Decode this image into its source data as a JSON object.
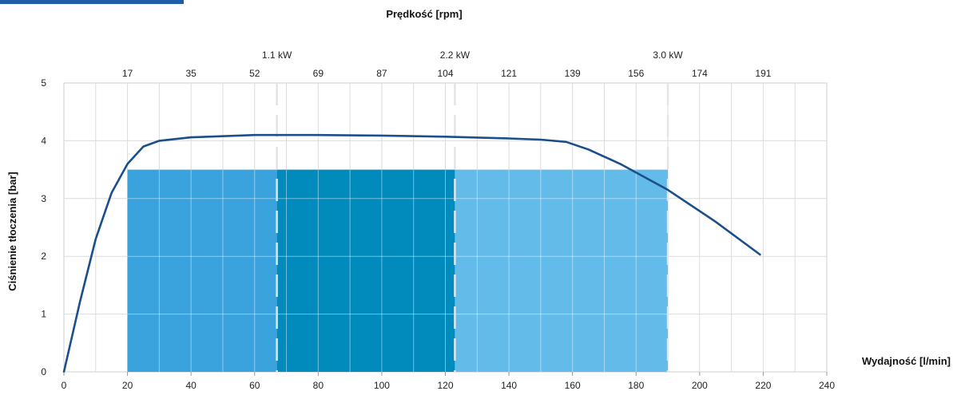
{
  "chart_data": {
    "type": "area",
    "xlabel": "Wydajność [l/min]",
    "ylabel": "Ciśnienie tłoczenia [bar]",
    "top_axis_label": "Prędkość [rpm]",
    "xlim": [
      0,
      240
    ],
    "ylim": [
      0,
      5
    ],
    "x_ticks": [
      0,
      20,
      40,
      60,
      80,
      100,
      120,
      140,
      160,
      180,
      200,
      220,
      240
    ],
    "y_ticks": [
      0,
      1,
      2,
      3,
      4,
      5
    ],
    "rpm_ticks": [
      {
        "x": 20,
        "label": "17"
      },
      {
        "x": 40,
        "label": "35"
      },
      {
        "x": 60,
        "label": "52"
      },
      {
        "x": 80,
        "label": "69"
      },
      {
        "x": 100,
        "label": "87"
      },
      {
        "x": 120,
        "label": "104"
      },
      {
        "x": 140,
        "label": "121"
      },
      {
        "x": 160,
        "label": "139"
      },
      {
        "x": 180,
        "label": "156"
      },
      {
        "x": 200,
        "label": "174"
      },
      {
        "x": 220,
        "label": "191"
      }
    ],
    "power_markers": [
      {
        "x": 67,
        "label": "1.1 kW"
      },
      {
        "x": 123,
        "label": "2.2 kW"
      },
      {
        "x": 190,
        "label": "3.0 kW"
      }
    ],
    "regions": [
      {
        "x0": 20,
        "x1": 67,
        "y": 3.5,
        "color": "#3aa2dc"
      },
      {
        "x0": 67,
        "x1": 123,
        "y": 3.5,
        "color": "#018bbd"
      },
      {
        "x0": 123,
        "x1": 190,
        "y": 3.5,
        "color": "#63bbea"
      }
    ],
    "curve": {
      "color": "#1a4f8b",
      "points": [
        [
          0,
          0
        ],
        [
          5,
          1.2
        ],
        [
          10,
          2.3
        ],
        [
          15,
          3.1
        ],
        [
          20,
          3.6
        ],
        [
          25,
          3.9
        ],
        [
          30,
          4.0
        ],
        [
          40,
          4.06
        ],
        [
          60,
          4.1
        ],
        [
          80,
          4.1
        ],
        [
          100,
          4.09
        ],
        [
          120,
          4.07
        ],
        [
          140,
          4.04
        ],
        [
          150,
          4.02
        ],
        [
          158,
          3.98
        ],
        [
          165,
          3.85
        ],
        [
          175,
          3.6
        ],
        [
          190,
          3.15
        ],
        [
          205,
          2.6
        ],
        [
          219,
          2.03
        ]
      ]
    },
    "grid": true
  }
}
